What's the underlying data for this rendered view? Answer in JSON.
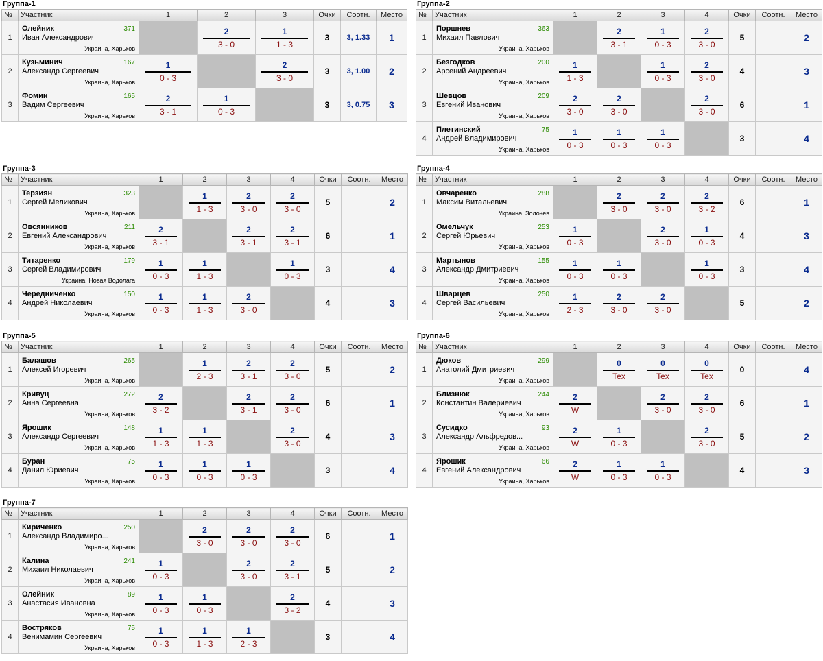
{
  "headers": {
    "no": "№",
    "participant": "Участник",
    "points": "Очки",
    "ratio": "Соотн.",
    "place": "Место"
  },
  "groups": [
    {
      "title": "Группа-1",
      "cols": [
        "1",
        "2",
        "3"
      ],
      "rows": [
        {
          "no": "1",
          "surname": "Олейник",
          "rating": "371",
          "name": "Иван Александрович",
          "city": "Украина, Харьков",
          "cells": [
            null,
            {
              "p": "2",
              "s": "3 - 0"
            },
            {
              "p": "1",
              "s": "1 - 3"
            }
          ],
          "points": "3",
          "ratio": "3, 1.33",
          "place": "1"
        },
        {
          "no": "2",
          "surname": "Кузьминич",
          "rating": "167",
          "name": "Александр Сергеевич",
          "city": "Украина, Харьков",
          "cells": [
            {
              "p": "1",
              "s": "0 - 3"
            },
            null,
            {
              "p": "2",
              "s": "3 - 0"
            }
          ],
          "points": "3",
          "ratio": "3, 1.00",
          "place": "2"
        },
        {
          "no": "3",
          "surname": "Фомин",
          "rating": "165",
          "name": "Вадим Сергеевич",
          "city": "Украина, Харьков",
          "cells": [
            {
              "p": "2",
              "s": "3 - 1"
            },
            {
              "p": "1",
              "s": "0 - 3"
            },
            null
          ],
          "points": "3",
          "ratio": "3, 0.75",
          "place": "3"
        }
      ]
    },
    {
      "title": "Группа-2",
      "cols": [
        "1",
        "2",
        "3",
        "4"
      ],
      "rows": [
        {
          "no": "1",
          "surname": "Поршнев",
          "rating": "363",
          "name": "Михаил Павлович",
          "city": "Украина, Харьков",
          "cells": [
            null,
            {
              "p": "2",
              "s": "3 - 1"
            },
            {
              "p": "1",
              "s": "0 - 3"
            },
            {
              "p": "2",
              "s": "3 - 0"
            }
          ],
          "points": "5",
          "ratio": "",
          "place": "2"
        },
        {
          "no": "2",
          "surname": "Безгодков",
          "rating": "200",
          "name": "Арсений Андреевич",
          "city": "Украина, Харьков",
          "cells": [
            {
              "p": "1",
              "s": "1 - 3"
            },
            null,
            {
              "p": "1",
              "s": "0 - 3"
            },
            {
              "p": "2",
              "s": "3 - 0"
            }
          ],
          "points": "4",
          "ratio": "",
          "place": "3"
        },
        {
          "no": "3",
          "surname": "Шевцов",
          "rating": "209",
          "name": "Евгений Иванович",
          "city": "Украина, Харьков",
          "cells": [
            {
              "p": "2",
              "s": "3 - 0"
            },
            {
              "p": "2",
              "s": "3 - 0"
            },
            null,
            {
              "p": "2",
              "s": "3 - 0"
            }
          ],
          "points": "6",
          "ratio": "",
          "place": "1"
        },
        {
          "no": "4",
          "surname": "Плетинский",
          "rating": "75",
          "name": "Андрей Владимирович",
          "city": "Украина, Харьков",
          "cells": [
            {
              "p": "1",
              "s": "0 - 3"
            },
            {
              "p": "1",
              "s": "0 - 3"
            },
            {
              "p": "1",
              "s": "0 - 3"
            },
            null
          ],
          "points": "3",
          "ratio": "",
          "place": "4"
        }
      ]
    },
    {
      "title": "Группа-3",
      "cols": [
        "1",
        "2",
        "3",
        "4"
      ],
      "rows": [
        {
          "no": "1",
          "surname": "Терзиян",
          "rating": "323",
          "name": "Сергей Меликович",
          "city": "Украина, Харьков",
          "cells": [
            null,
            {
              "p": "1",
              "s": "1 - 3"
            },
            {
              "p": "2",
              "s": "3 - 0"
            },
            {
              "p": "2",
              "s": "3 - 0"
            }
          ],
          "points": "5",
          "ratio": "",
          "place": "2"
        },
        {
          "no": "2",
          "surname": "Овсянников",
          "rating": "211",
          "name": "Евгений Александрович",
          "city": "Украина, Харьков",
          "cells": [
            {
              "p": "2",
              "s": "3 - 1"
            },
            null,
            {
              "p": "2",
              "s": "3 - 1"
            },
            {
              "p": "2",
              "s": "3 - 1"
            }
          ],
          "points": "6",
          "ratio": "",
          "place": "1"
        },
        {
          "no": "3",
          "surname": "Титаренко",
          "rating": "179",
          "name": "Сергей Владимирович",
          "city": "Украина, Новая Водолага",
          "cells": [
            {
              "p": "1",
              "s": "0 - 3"
            },
            {
              "p": "1",
              "s": "1 - 3"
            },
            null,
            {
              "p": "1",
              "s": "0 - 3"
            }
          ],
          "points": "3",
          "ratio": "",
          "place": "4"
        },
        {
          "no": "4",
          "surname": "Чередниченко",
          "rating": "150",
          "name": "Андрей Николаевич",
          "city": "Украина, Харьков",
          "cells": [
            {
              "p": "1",
              "s": "0 - 3"
            },
            {
              "p": "1",
              "s": "1 - 3"
            },
            {
              "p": "2",
              "s": "3 - 0"
            },
            null
          ],
          "points": "4",
          "ratio": "",
          "place": "3"
        }
      ]
    },
    {
      "title": "Группа-4",
      "cols": [
        "1",
        "2",
        "3",
        "4"
      ],
      "rows": [
        {
          "no": "1",
          "surname": "Овчаренко",
          "rating": "288",
          "name": "Максим Витальевич",
          "city": "Украина, Золочев",
          "cells": [
            null,
            {
              "p": "2",
              "s": "3 - 0"
            },
            {
              "p": "2",
              "s": "3 - 0"
            },
            {
              "p": "2",
              "s": "3 - 2"
            }
          ],
          "points": "6",
          "ratio": "",
          "place": "1"
        },
        {
          "no": "2",
          "surname": "Омельчук",
          "rating": "253",
          "name": "Сергей Юрьевич",
          "city": "Украина, Харьков",
          "cells": [
            {
              "p": "1",
              "s": "0 - 3"
            },
            null,
            {
              "p": "2",
              "s": "3 - 0"
            },
            {
              "p": "1",
              "s": "0 - 3"
            }
          ],
          "points": "4",
          "ratio": "",
          "place": "3"
        },
        {
          "no": "3",
          "surname": "Мартынов",
          "rating": "155",
          "name": "Александр Дмитриевич",
          "city": "Украина, Харьков",
          "cells": [
            {
              "p": "1",
              "s": "0 - 3"
            },
            {
              "p": "1",
              "s": "0 - 3"
            },
            null,
            {
              "p": "1",
              "s": "0 - 3"
            }
          ],
          "points": "3",
          "ratio": "",
          "place": "4"
        },
        {
          "no": "4",
          "surname": "Шварцев",
          "rating": "250",
          "name": "Сергей Васильевич",
          "city": "Украина, Харьков",
          "cells": [
            {
              "p": "1",
              "s": "2 - 3"
            },
            {
              "p": "2",
              "s": "3 - 0"
            },
            {
              "p": "2",
              "s": "3 - 0"
            },
            null
          ],
          "points": "5",
          "ratio": "",
          "place": "2"
        }
      ]
    },
    {
      "title": "Группа-5",
      "cols": [
        "1",
        "2",
        "3",
        "4"
      ],
      "rows": [
        {
          "no": "1",
          "surname": "Балашов",
          "rating": "265",
          "name": "Алексей Игоревич",
          "city": "Украина, Харьков",
          "cells": [
            null,
            {
              "p": "1",
              "s": "2 - 3"
            },
            {
              "p": "2",
              "s": "3 - 1"
            },
            {
              "p": "2",
              "s": "3 - 0"
            }
          ],
          "points": "5",
          "ratio": "",
          "place": "2"
        },
        {
          "no": "2",
          "surname": "Кривуц",
          "rating": "272",
          "name": "Анна Сергеевна",
          "city": "Украина, Харьков",
          "cells": [
            {
              "p": "2",
              "s": "3 - 2"
            },
            null,
            {
              "p": "2",
              "s": "3 - 1"
            },
            {
              "p": "2",
              "s": "3 - 0"
            }
          ],
          "points": "6",
          "ratio": "",
          "place": "1"
        },
        {
          "no": "3",
          "surname": "Ярошик",
          "rating": "148",
          "name": "Александр Сергеевич",
          "city": "Украина, Харьков",
          "cells": [
            {
              "p": "1",
              "s": "1 - 3"
            },
            {
              "p": "1",
              "s": "1 - 3"
            },
            null,
            {
              "p": "2",
              "s": "3 - 0"
            }
          ],
          "points": "4",
          "ratio": "",
          "place": "3"
        },
        {
          "no": "4",
          "surname": "Буран",
          "rating": "75",
          "name": "Данил Юриевич",
          "city": "Украина, Харьков",
          "cells": [
            {
              "p": "1",
              "s": "0 - 3"
            },
            {
              "p": "1",
              "s": "0 - 3"
            },
            {
              "p": "1",
              "s": "0 - 3"
            },
            null
          ],
          "points": "3",
          "ratio": "",
          "place": "4"
        }
      ]
    },
    {
      "title": "Группа-6",
      "cols": [
        "1",
        "2",
        "3",
        "4"
      ],
      "rows": [
        {
          "no": "1",
          "surname": "Дюков",
          "rating": "299",
          "name": "Анатолий Дмитриевич",
          "city": "Украина, Харьков",
          "cells": [
            null,
            {
              "p": "0",
              "s": "Tex"
            },
            {
              "p": "0",
              "s": "Tex"
            },
            {
              "p": "0",
              "s": "Tex"
            }
          ],
          "points": "0",
          "ratio": "",
          "place": "4"
        },
        {
          "no": "2",
          "surname": "Близнюк",
          "rating": "244",
          "name": "Константин Валериевич",
          "city": "Украина, Харьков",
          "cells": [
            {
              "p": "2",
              "s": "W"
            },
            null,
            {
              "p": "2",
              "s": "3 - 0"
            },
            {
              "p": "2",
              "s": "3 - 0"
            }
          ],
          "points": "6",
          "ratio": "",
          "place": "1"
        },
        {
          "no": "3",
          "surname": "Сусидко",
          "rating": "93",
          "name": "Александр Альфредов...",
          "city": "Украина, Харьков",
          "cells": [
            {
              "p": "2",
              "s": "W"
            },
            {
              "p": "1",
              "s": "0 - 3"
            },
            null,
            {
              "p": "2",
              "s": "3 - 0"
            }
          ],
          "points": "5",
          "ratio": "",
          "place": "2"
        },
        {
          "no": "4",
          "surname": "Ярошик",
          "rating": "66",
          "name": "Евгений Александрович",
          "city": "Украина, Харьков",
          "cells": [
            {
              "p": "2",
              "s": "W"
            },
            {
              "p": "1",
              "s": "0 - 3"
            },
            {
              "p": "1",
              "s": "0 - 3"
            },
            null
          ],
          "points": "4",
          "ratio": "",
          "place": "3"
        }
      ]
    },
    {
      "title": "Группа-7",
      "cols": [
        "1",
        "2",
        "3",
        "4"
      ],
      "rows": [
        {
          "no": "1",
          "surname": "Кириченко",
          "rating": "250",
          "name": "Александр Владимиро...",
          "city": "Украина, Харьков",
          "cells": [
            null,
            {
              "p": "2",
              "s": "3 - 0"
            },
            {
              "p": "2",
              "s": "3 - 0"
            },
            {
              "p": "2",
              "s": "3 - 0"
            }
          ],
          "points": "6",
          "ratio": "",
          "place": "1"
        },
        {
          "no": "2",
          "surname": "Калина",
          "rating": "241",
          "name": "Михаил Николаевич",
          "city": "Украина, Харьков",
          "cells": [
            {
              "p": "1",
              "s": "0 - 3"
            },
            null,
            {
              "p": "2",
              "s": "3 - 0"
            },
            {
              "p": "2",
              "s": "3 - 1"
            }
          ],
          "points": "5",
          "ratio": "",
          "place": "2"
        },
        {
          "no": "3",
          "surname": "Олейник",
          "rating": "89",
          "name": "Анастасия Ивановна",
          "city": "Украина, Харьков",
          "cells": [
            {
              "p": "1",
              "s": "0 - 3"
            },
            {
              "p": "1",
              "s": "0 - 3"
            },
            null,
            {
              "p": "2",
              "s": "3 - 2"
            }
          ],
          "points": "4",
          "ratio": "",
          "place": "3"
        },
        {
          "no": "4",
          "surname": "Востряков",
          "rating": "75",
          "name": "Венимамин Сергеевич",
          "city": "Украина, Харьков",
          "cells": [
            {
              "p": "1",
              "s": "0 - 3"
            },
            {
              "p": "1",
              "s": "1 - 3"
            },
            {
              "p": "1",
              "s": "2 - 3"
            },
            null
          ],
          "points": "3",
          "ratio": "",
          "place": "4"
        }
      ]
    }
  ]
}
